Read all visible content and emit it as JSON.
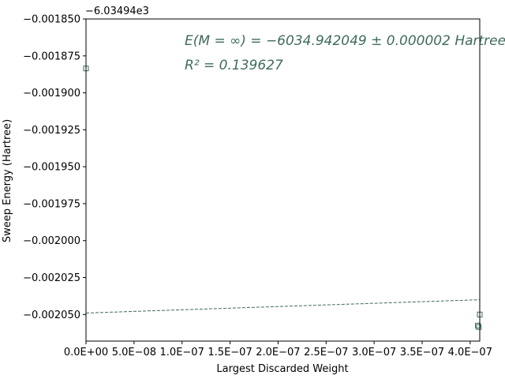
{
  "chart_data": {
    "type": "scatter",
    "xlabel": "Largest Discarded Weight",
    "ylabel": "Sweep Energy (Hartree)",
    "y_offset_label": "−6.03494e3",
    "xlim": [
      0.0,
      4.1e-07
    ],
    "ylim": [
      -0.002068,
      -0.00185
    ],
    "x_ticks": [
      0.0,
      5e-08,
      1e-07,
      1.5e-07,
      2e-07,
      2.5e-07,
      3e-07,
      3.5e-07,
      4e-07
    ],
    "x_tick_labels": [
      "0.0E+00",
      "5.0E−08",
      "1.0E−07",
      "1.5E−07",
      "2.0E−07",
      "2.5E−07",
      "3.0E−07",
      "3.5E−07",
      "4.0E−07"
    ],
    "y_ticks": [
      -0.00185,
      -0.001875,
      -0.0019,
      -0.001925,
      -0.00195,
      -0.001975,
      -0.002,
      -0.002025,
      -0.00205
    ],
    "y_tick_labels": [
      "−0.001850",
      "−0.001875",
      "−0.001900",
      "−0.001925",
      "−0.001950",
      "−0.001975",
      "−0.002000",
      "−0.002025",
      "−0.002050"
    ],
    "points": [
      {
        "x": 0.0,
        "y": -0.0018835
      },
      {
        "x": 4.1e-07,
        "y": -0.00205
      },
      {
        "x": 4.08e-07,
        "y": -0.0020575
      },
      {
        "x": 4.09e-07,
        "y": -0.0020585
      }
    ],
    "fit_line": {
      "x": [
        0.0,
        4.1e-07
      ],
      "y": [
        -0.002049,
        -0.00204
      ],
      "style": "dashed"
    },
    "annotations": [
      {
        "text": "E(M = ∞) = −6034.942049 ± 0.000002 Hartree"
      },
      {
        "text": "R² = 0.139627"
      }
    ],
    "colors": {
      "series": "#3f6b5c",
      "axis": "#000000"
    },
    "grid": false
  }
}
